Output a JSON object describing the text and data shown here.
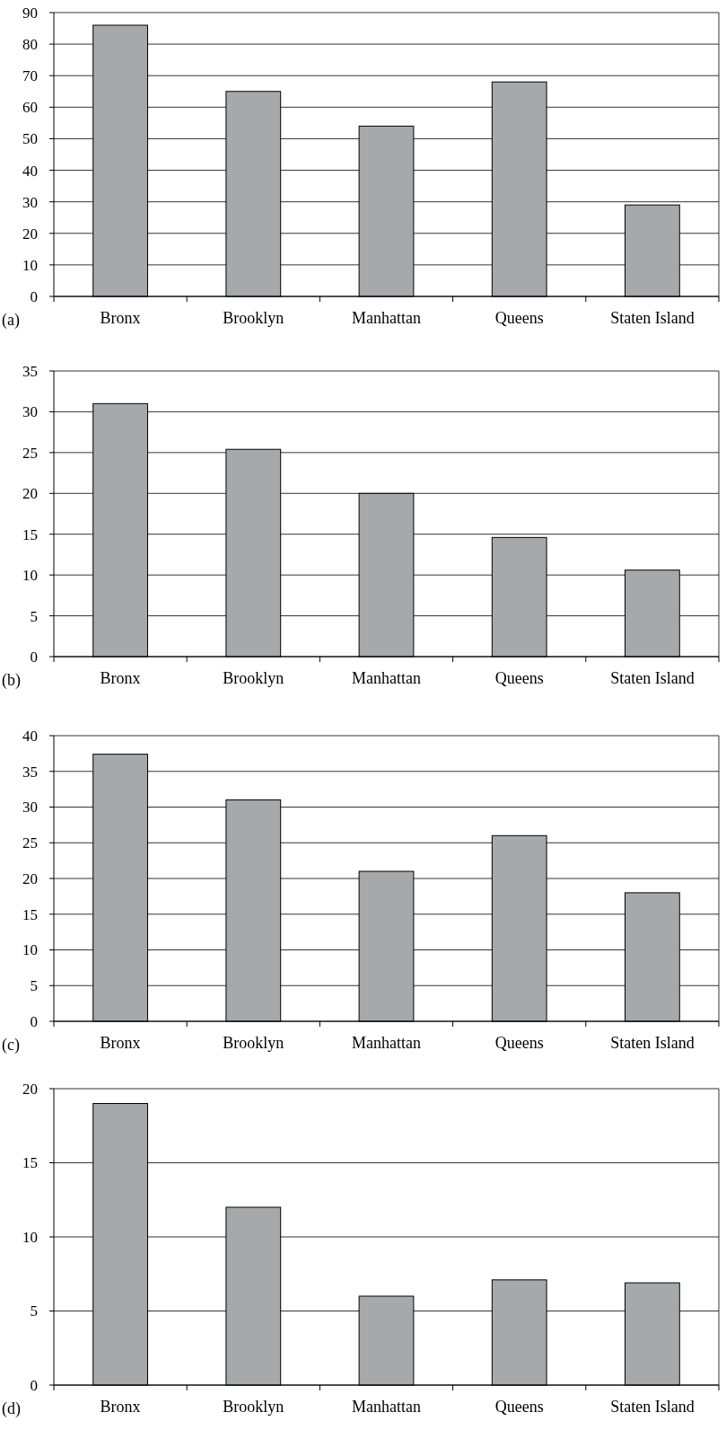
{
  "chart_data": [
    {
      "type": "bar",
      "categories": [
        "Bronx",
        "Brooklyn",
        "Manhattan",
        "Queens",
        "Staten Island"
      ],
      "values": [
        86,
        65,
        54,
        68,
        29
      ],
      "color": "#a7a8ac",
      "ylim": [
        0,
        90
      ],
      "yticks": [
        0,
        10,
        20,
        30,
        40,
        50,
        60,
        70,
        80,
        90
      ],
      "grid": "y",
      "annotations": [
        "(a)"
      ]
    },
    {
      "type": "bar",
      "categories": [
        "Bronx",
        "Brooklyn",
        "Manhattan",
        "Queens",
        "Staten Island"
      ],
      "values": [
        31,
        25.4,
        20,
        14.6,
        10.6
      ],
      "color": "#a7a8ac",
      "ylim": [
        0,
        35
      ],
      "yticks": [
        0,
        5,
        10,
        15,
        20,
        25,
        30,
        35
      ],
      "grid": "y",
      "annotations": [
        "(b)"
      ]
    },
    {
      "type": "bar",
      "categories": [
        "Bronx",
        "Brooklyn",
        "Manhattan",
        "Queens",
        "Staten Island"
      ],
      "values": [
        37.4,
        31,
        21,
        26,
        18
      ],
      "color": "#a7a8ac",
      "ylim": [
        0,
        40
      ],
      "yticks": [
        0,
        5,
        10,
        15,
        20,
        25,
        30,
        35,
        40
      ],
      "grid": "y",
      "annotations": [
        "(c)"
      ]
    },
    {
      "type": "bar",
      "categories": [
        "Bronx",
        "Brooklyn",
        "Manhattan",
        "Queens",
        "Staten Island"
      ],
      "values": [
        19,
        12,
        6,
        7.1,
        6.9
      ],
      "color": "#a7a8ac",
      "ylim": [
        0,
        20
      ],
      "yticks": [
        0,
        5,
        10,
        15,
        20
      ],
      "grid": "y",
      "annotations": [
        "(d)"
      ]
    }
  ]
}
